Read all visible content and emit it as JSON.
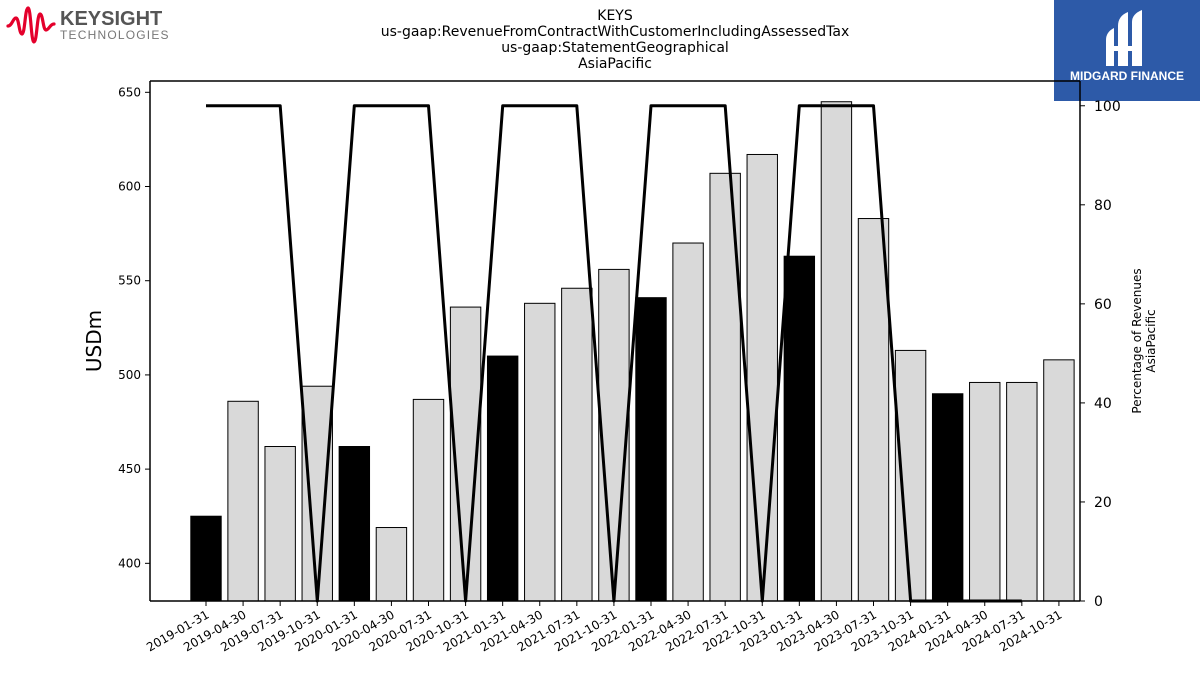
{
  "branding": {
    "left_logo_name": "KEYSIGHT",
    "left_logo_sub": "TECHNOLOGIES",
    "left_logo_color": "#e4002b",
    "right_logo_text": "MIDGARD FINANCE",
    "right_logo_bg": "#2d5aa8"
  },
  "chart_data": {
    "type": "bar",
    "title_lines": [
      "KEYS",
      "us-gaap:RevenueFromContractWithCustomerIncludingAssessedTax",
      "us-gaap:StatementGeographical",
      "AsiaPacific"
    ],
    "ylabel": "USDm",
    "y2label_lines": [
      "Percentage of Revenues",
      "AsiaPacific"
    ],
    "ylim": [
      380,
      656
    ],
    "y2lim": [
      0,
      105
    ],
    "yticks": [
      400,
      450,
      500,
      550,
      600,
      650
    ],
    "y2ticks": [
      0,
      20,
      40,
      60,
      80,
      100
    ],
    "categories": [
      "2019-01-31",
      "2019-04-30",
      "2019-07-31",
      "2019-10-31",
      "2020-01-31",
      "2020-04-30",
      "2020-07-31",
      "2020-10-31",
      "2021-01-31",
      "2021-04-30",
      "2021-07-31",
      "2021-10-31",
      "2022-01-31",
      "2022-04-30",
      "2022-07-31",
      "2022-10-31",
      "2023-01-31",
      "2023-04-30",
      "2023-07-31",
      "2023-10-31",
      "2024-01-31",
      "2024-04-30",
      "2024-07-31",
      "2024-10-31"
    ],
    "values": [
      425,
      486,
      462,
      494,
      462,
      419,
      487,
      536,
      510,
      538,
      546,
      556,
      541,
      570,
      607,
      617,
      563,
      645,
      583,
      513,
      490,
      496,
      496,
      508
    ],
    "highlight": [
      true,
      false,
      false,
      false,
      true,
      false,
      false,
      false,
      true,
      false,
      false,
      false,
      true,
      false,
      false,
      false,
      true,
      false,
      false,
      false,
      true,
      false,
      false,
      false
    ],
    "bar_color": "#d9d9d9",
    "highlight_color": "#000000",
    "line_name": "Percentage of Revenues",
    "line_values": [
      100,
      100,
      100,
      0,
      100,
      100,
      100,
      0,
      100,
      100,
      100,
      0,
      100,
      100,
      100,
      0,
      100,
      100,
      100,
      0,
      0,
      0,
      0,
      null
    ],
    "line_color": "#000000",
    "grid": false
  }
}
